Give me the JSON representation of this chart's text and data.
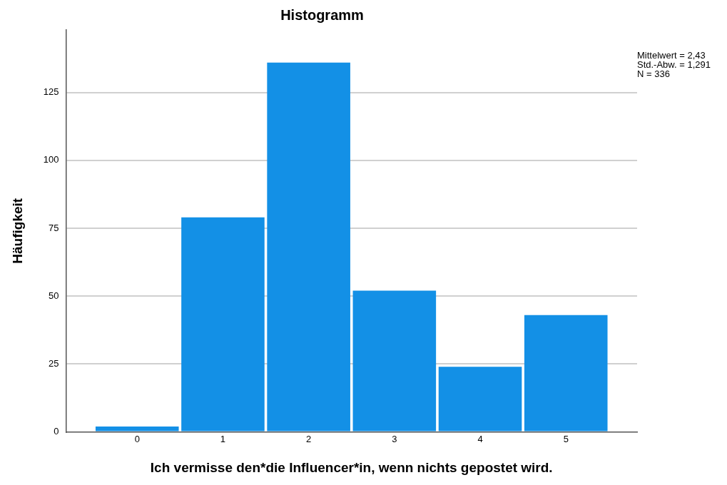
{
  "chart_data": {
    "type": "histogram",
    "title": "Histogramm",
    "xlabel": "Ich vermisse den*die Influencer*in, wenn nichts gepostet wird.",
    "ylabel": "Häufigkeit",
    "bins": [
      -0.5,
      0.5,
      1.5,
      2.5,
      3.5,
      4.5,
      5.5
    ],
    "values": [
      2,
      79,
      136,
      52,
      24,
      43
    ],
    "color": "#1390e6",
    "xlim": [
      -0.83,
      5.83
    ],
    "xticks": [
      0,
      1,
      2,
      3,
      4,
      5
    ],
    "ylim": [
      0,
      148
    ],
    "yticks": [
      0,
      25,
      50,
      75,
      100,
      125
    ],
    "grid": "y",
    "legend": false,
    "annotations": [
      "Mittelwert = 2,43",
      "Std.-Abw. = 1,291",
      "N = 336"
    ]
  }
}
